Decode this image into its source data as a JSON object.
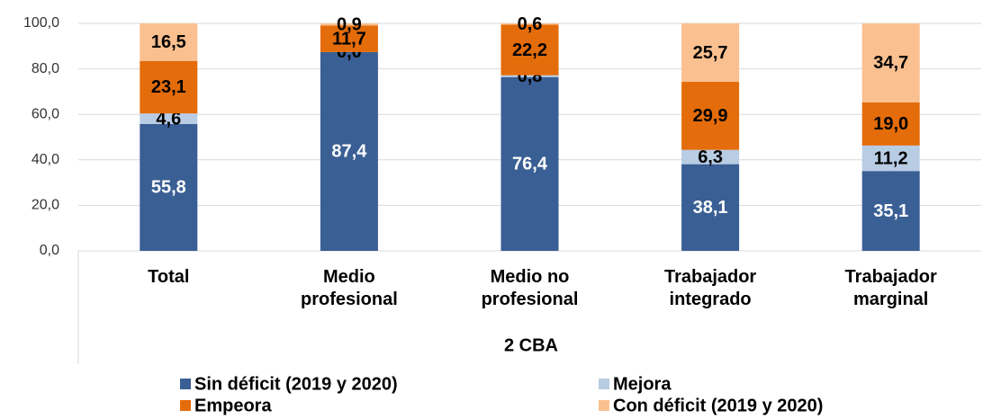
{
  "chart_data": {
    "type": "stacked_bar",
    "categories": [
      "Total",
      "Medio profesional",
      "Medio no profesional",
      "Trabajador integrado",
      "Trabajador marginal"
    ],
    "xlabel": "2 CBA",
    "series": [
      {
        "name": "Sin déficit (2019 y 2020)",
        "color": "#3a5f94",
        "label_color": "#ffffff",
        "values": [
          55.8,
          87.4,
          76.4,
          38.1,
          35.1
        ],
        "value_labels": [
          "55,8",
          "87,4",
          "76,4",
          "38,1",
          "35,1"
        ]
      },
      {
        "name": "Mejora",
        "color": "#b8cce4",
        "label_color": "#000000",
        "values": [
          4.6,
          0.0,
          0.8,
          6.3,
          11.2
        ],
        "value_labels": [
          "4,6",
          "0,0",
          "0,8",
          "6,3",
          "11,2"
        ]
      },
      {
        "name": "Empeora",
        "color": "#e46c0a",
        "label_color": "#000000",
        "values": [
          23.1,
          11.7,
          22.2,
          29.9,
          19.0
        ],
        "value_labels": [
          "23,1",
          "11,7",
          "22,2",
          "29,9",
          "19,0"
        ]
      },
      {
        "name": "Con déficit (2019 y 2020)",
        "color": "#fac090",
        "label_color": "#000000",
        "values": [
          16.5,
          0.9,
          0.6,
          25.7,
          34.7
        ],
        "value_labels": [
          "16,5",
          "0,9",
          "0,6",
          "25,7",
          "34,7"
        ]
      }
    ],
    "ylim": [
      0,
      100
    ],
    "yticks": [
      {
        "value": 0,
        "label": "0,0"
      },
      {
        "value": 20,
        "label": "20,0"
      },
      {
        "value": 40,
        "label": "40,0"
      },
      {
        "value": 60,
        "label": "60,0"
      },
      {
        "value": 80,
        "label": "80,0"
      },
      {
        "value": 100,
        "label": "100,0"
      }
    ],
    "grid": true,
    "legend": "bottom"
  }
}
